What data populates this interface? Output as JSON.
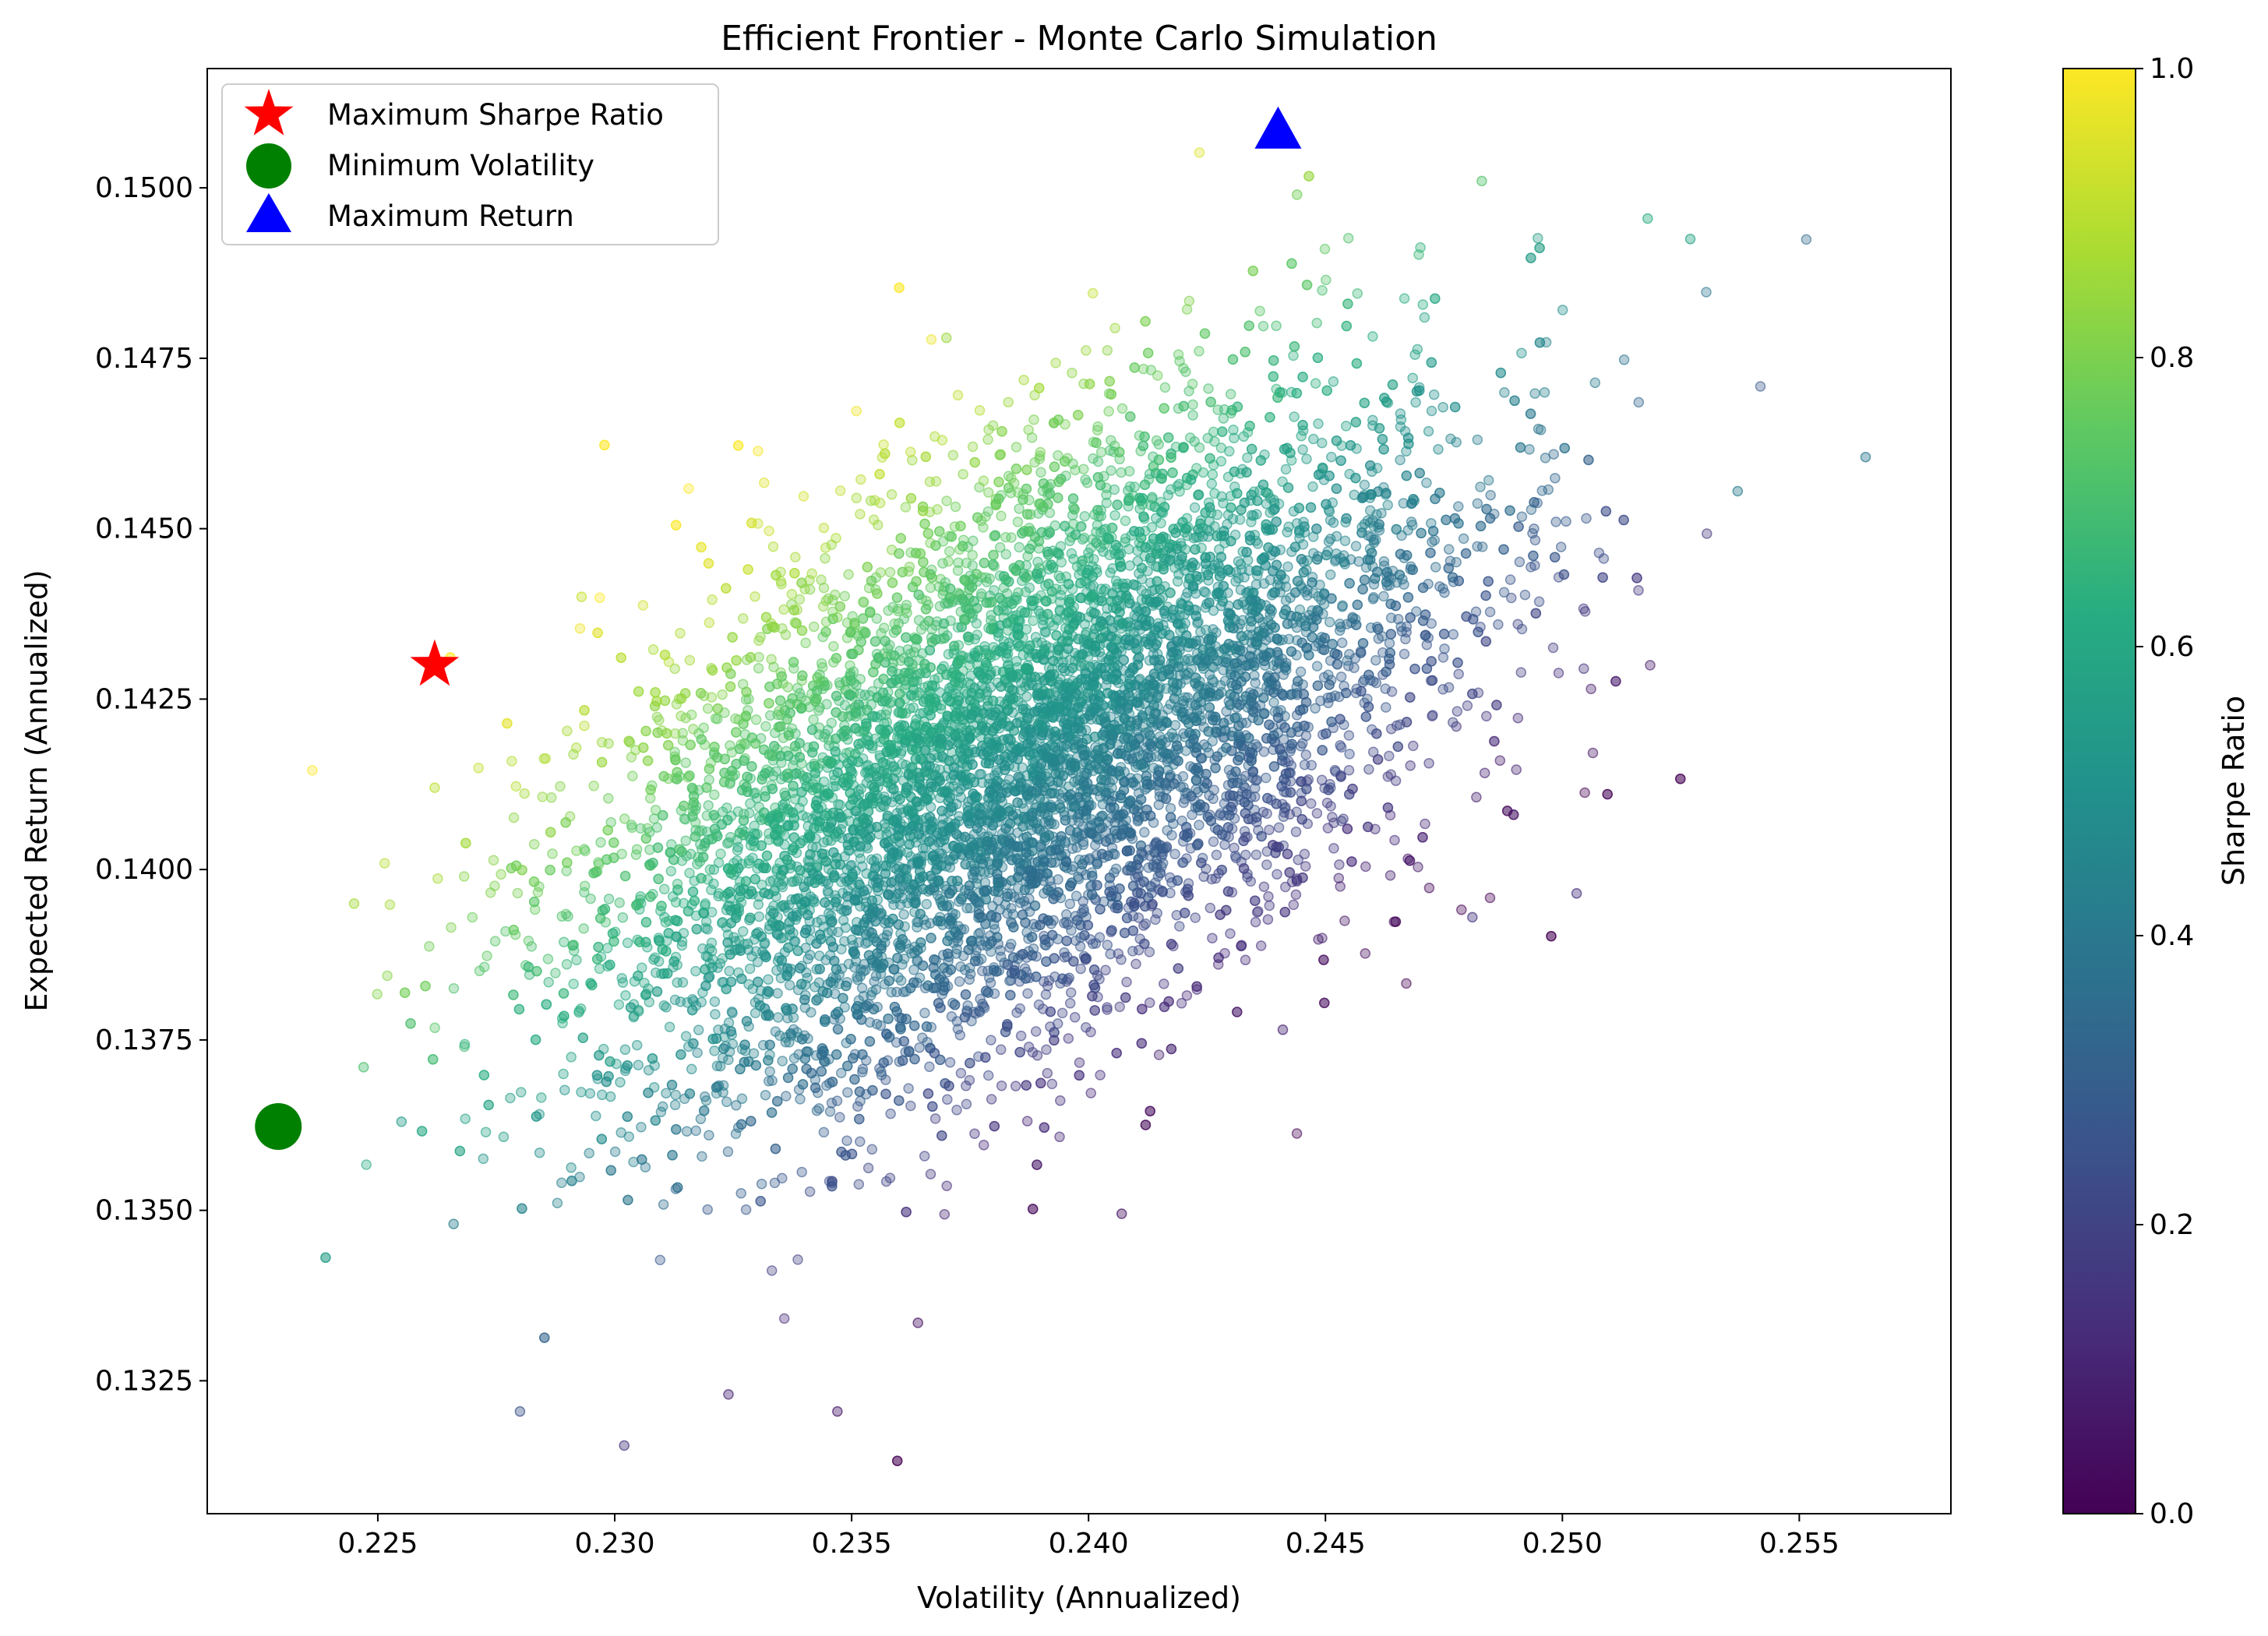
{
  "chart_data": {
    "type": "scatter",
    "title": "Efficient Frontier - Monte Carlo Simulation",
    "xlabel": "Volatility (Annualized)",
    "ylabel": "Expected Return (Annualized)",
    "xlim": [
      0.2214,
      0.2582
    ],
    "ylim": [
      0.13055,
      0.15175
    ],
    "x_ticks": [
      "0.225",
      "0.230",
      "0.235",
      "0.240",
      "0.245",
      "0.250",
      "0.255"
    ],
    "x_tick_values": [
      0.225,
      0.23,
      0.235,
      0.24,
      0.245,
      0.25,
      0.255
    ],
    "y_ticks": [
      "0.1325",
      "0.1350",
      "0.1375",
      "0.1400",
      "0.1425",
      "0.1450",
      "0.1475",
      "0.1500"
    ],
    "y_tick_values": [
      0.1325,
      0.135,
      0.1375,
      0.14,
      0.1425,
      0.145,
      0.1475,
      0.15
    ],
    "grid": false,
    "legend_position": "top-left",
    "colormap": "viridis",
    "colorbar": {
      "label": "Sharpe Ratio",
      "range": [
        0.0,
        1.0
      ],
      "ticks": [
        "0.0",
        "0.2",
        "0.4",
        "0.6",
        "0.8",
        "1.0"
      ],
      "tick_values": [
        0.0,
        0.2,
        0.4,
        0.6,
        0.8,
        1.0
      ]
    },
    "highlights": [
      {
        "name": "Maximum Sharpe Ratio",
        "marker": "star",
        "color": "#ff0000",
        "x": 0.2262,
        "y": 0.143
      },
      {
        "name": "Minimum Volatility",
        "marker": "circle",
        "color": "#008000",
        "x": 0.2229,
        "y": 0.13623
      },
      {
        "name": "Maximum Return",
        "marker": "triangle",
        "color": "#0000ff",
        "x": 0.244,
        "y": 0.15085
      }
    ],
    "simulated_portfolios": {
      "count_shown": "dense cloud (~10000)",
      "center": [
        0.2385,
        0.1417
      ],
      "sample": [
        {
          "x": 0.2245,
          "y": 0.1395,
          "sharpe": 0.86
        },
        {
          "x": 0.2293,
          "y": 0.144,
          "sharpe": 0.92
        },
        {
          "x": 0.2347,
          "y": 0.1437,
          "sharpe": 0.8
        },
        {
          "x": 0.237,
          "y": 0.1478,
          "sharpe": 0.85
        },
        {
          "x": 0.2444,
          "y": 0.1499,
          "sharpe": 0.78
        },
        {
          "x": 0.2483,
          "y": 0.1501,
          "sharpe": 0.72
        },
        {
          "x": 0.2518,
          "y": 0.14955,
          "sharpe": 0.62
        },
        {
          "x": 0.2527,
          "y": 0.14925,
          "sharpe": 0.58
        },
        {
          "x": 0.2564,
          "y": 0.14605,
          "sharpe": 0.4
        },
        {
          "x": 0.2537,
          "y": 0.14555,
          "sharpe": 0.42
        },
        {
          "x": 0.2481,
          "y": 0.1393,
          "sharpe": 0.15
        },
        {
          "x": 0.2503,
          "y": 0.13965,
          "sharpe": 0.14
        },
        {
          "x": 0.2441,
          "y": 0.13765,
          "sharpe": 0.1
        },
        {
          "x": 0.2407,
          "y": 0.13495,
          "sharpe": 0.04
        },
        {
          "x": 0.2364,
          "y": 0.13335,
          "sharpe": 0.05
        },
        {
          "x": 0.2347,
          "y": 0.13205,
          "sharpe": 0.06
        },
        {
          "x": 0.2324,
          "y": 0.1323,
          "sharpe": 0.1
        },
        {
          "x": 0.2302,
          "y": 0.13155,
          "sharpe": 0.15
        },
        {
          "x": 0.228,
          "y": 0.13205,
          "sharpe": 0.25
        },
        {
          "x": 0.2266,
          "y": 0.1348,
          "sharpe": 0.42
        },
        {
          "x": 0.2255,
          "y": 0.1363,
          "sharpe": 0.55
        },
        {
          "x": 0.2247,
          "y": 0.1371,
          "sharpe": 0.7
        },
        {
          "x": 0.2262,
          "y": 0.1412,
          "sharpe": 0.9
        },
        {
          "x": 0.2419,
          "y": 0.1436,
          "sharpe": 0.5
        },
        {
          "x": 0.236,
          "y": 0.1405,
          "sharpe": 0.52
        },
        {
          "x": 0.2405,
          "y": 0.1395,
          "sharpe": 0.3
        }
      ]
    }
  }
}
